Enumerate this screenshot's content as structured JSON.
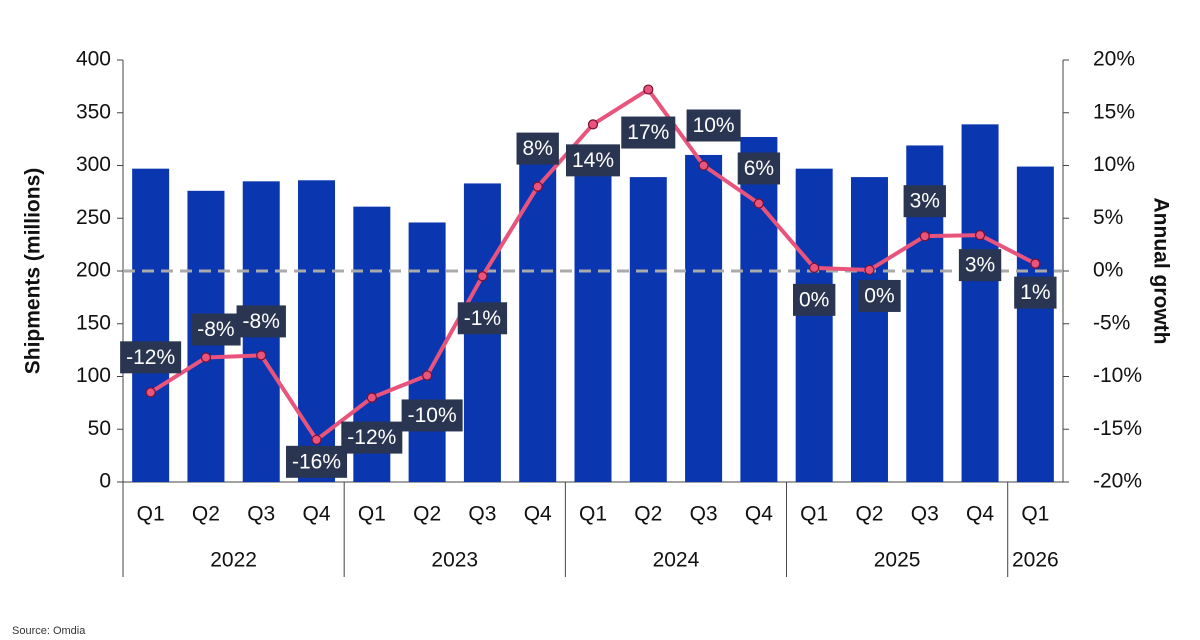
{
  "chart_data": {
    "type": "bar-line",
    "y_label": "Shipments (millions)",
    "y2_label": "Annual growth",
    "source": "Source: Omdia",
    "categories": [
      "Q1",
      "Q2",
      "Q3",
      "Q4",
      "Q1",
      "Q2",
      "Q3",
      "Q4",
      "Q1",
      "Q2",
      "Q3",
      "Q4",
      "Q1",
      "Q2",
      "Q3",
      "Q4",
      "Q1"
    ],
    "groups": [
      {
        "label": "2022",
        "size": 4
      },
      {
        "label": "2023",
        "size": 4
      },
      {
        "label": "2024",
        "size": 4
      },
      {
        "label": "2025",
        "size": 4
      },
      {
        "label": "2026",
        "size": 1
      }
    ],
    "series": [
      {
        "type": "bar",
        "color": "#0a36b0",
        "values": [
          297,
          276,
          285,
          286,
          261,
          246,
          283,
          305,
          298,
          289,
          310,
          327,
          297,
          289,
          319,
          339,
          299
        ]
      },
      {
        "type": "line",
        "axis": "y2",
        "color": "#e8547c",
        "values": [
          -11.5,
          -8.2,
          -8.0,
          -16.0,
          -12.0,
          -9.9,
          -0.5,
          8.0,
          13.9,
          17.2,
          10.0,
          6.4,
          0.3,
          0.1,
          3.3,
          3.4,
          0.7
        ],
        "value_labels": [
          "-12%",
          "-8%",
          "-8%",
          "-16%",
          "-12%",
          "-10%",
          "-1%",
          "8%",
          "14%",
          "17%",
          "10%",
          "6%",
          "0%",
          "0%",
          "3%",
          "3%",
          "1%"
        ]
      }
    ],
    "ylim": [
      0,
      400
    ],
    "yticks": [
      0,
      50,
      100,
      150,
      200,
      250,
      300,
      350,
      400
    ],
    "y2lim": [
      -20,
      20
    ],
    "y2ticks": [
      {
        "value": -20,
        "label": "-20%"
      },
      {
        "value": -15,
        "label": "-15%"
      },
      {
        "value": -10,
        "label": "-10%"
      },
      {
        "value": -5,
        "label": "-5%"
      },
      {
        "value": 0,
        "label": "0%"
      },
      {
        "value": 5,
        "label": "5%"
      },
      {
        "value": 10,
        "label": "10%"
      },
      {
        "value": 15,
        "label": "15%"
      },
      {
        "value": 20,
        "label": "20%"
      }
    ],
    "reference_line": {
      "axis": "y2",
      "value": 0,
      "color": "#aaaaaa"
    },
    "label_color": "#2a3552"
  }
}
